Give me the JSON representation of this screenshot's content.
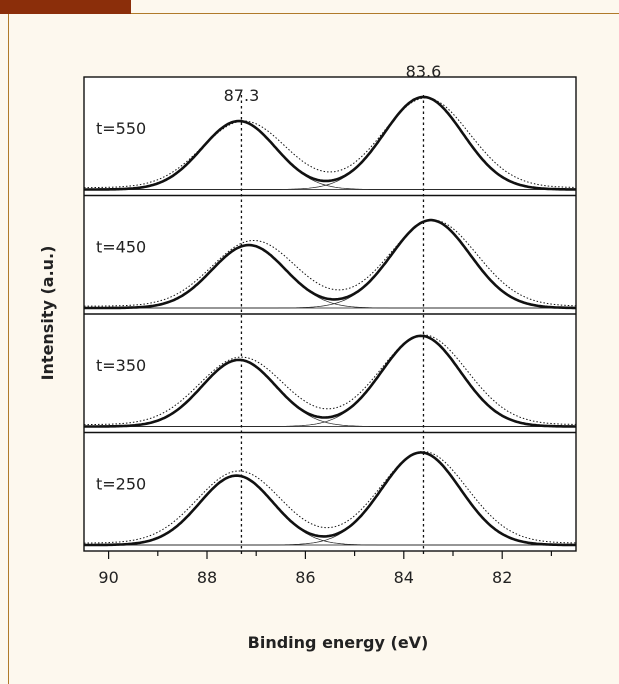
{
  "header": {
    "brand_color": "#8b2e0a",
    "rule_color": "#b07a2a"
  },
  "chart_data": {
    "type": "line",
    "xlabel": "Binding energy (eV)",
    "ylabel": "Intensity (a.u.)",
    "xlim": [
      90.5,
      80.5
    ],
    "x_ticks": [
      90,
      88,
      86,
      84,
      82
    ],
    "x_minor_step": 1,
    "peak_annotations": [
      {
        "label": "87.3",
        "x": 87.3
      },
      {
        "label": "83.6",
        "x": 83.6
      }
    ],
    "panels": [
      {
        "label": "t=550",
        "peaks": [
          {
            "center": 87.35,
            "height": 0.74,
            "sigma": 0.75
          },
          {
            "center": 83.6,
            "height": 1.0,
            "sigma": 0.8
          }
        ],
        "data_peaks": [
          {
            "center": 87.25,
            "height": 0.72,
            "sigma": 0.85
          },
          {
            "center": 83.55,
            "height": 0.97,
            "sigma": 0.88
          }
        ]
      },
      {
        "label": "t=450",
        "peaks": [
          {
            "center": 87.15,
            "height": 0.68,
            "sigma": 0.75
          },
          {
            "center": 83.45,
            "height": 0.95,
            "sigma": 0.8
          }
        ],
        "data_peaks": [
          {
            "center": 87.05,
            "height": 0.71,
            "sigma": 0.85
          },
          {
            "center": 83.4,
            "height": 0.93,
            "sigma": 0.88
          }
        ]
      },
      {
        "label": "t=350",
        "peaks": [
          {
            "center": 87.35,
            "height": 0.72,
            "sigma": 0.75
          },
          {
            "center": 83.65,
            "height": 0.98,
            "sigma": 0.8
          }
        ],
        "data_peaks": [
          {
            "center": 87.3,
            "height": 0.73,
            "sigma": 0.85
          },
          {
            "center": 83.6,
            "height": 0.97,
            "sigma": 0.88
          }
        ]
      },
      {
        "label": "t=250",
        "peaks": [
          {
            "center": 87.4,
            "height": 0.75,
            "sigma": 0.75
          },
          {
            "center": 83.65,
            "height": 1.0,
            "sigma": 0.8
          }
        ],
        "data_peaks": [
          {
            "center": 87.35,
            "height": 0.78,
            "sigma": 0.85
          },
          {
            "center": 83.6,
            "height": 0.99,
            "sigma": 0.88
          }
        ]
      }
    ],
    "grid": false,
    "legend": "none"
  }
}
